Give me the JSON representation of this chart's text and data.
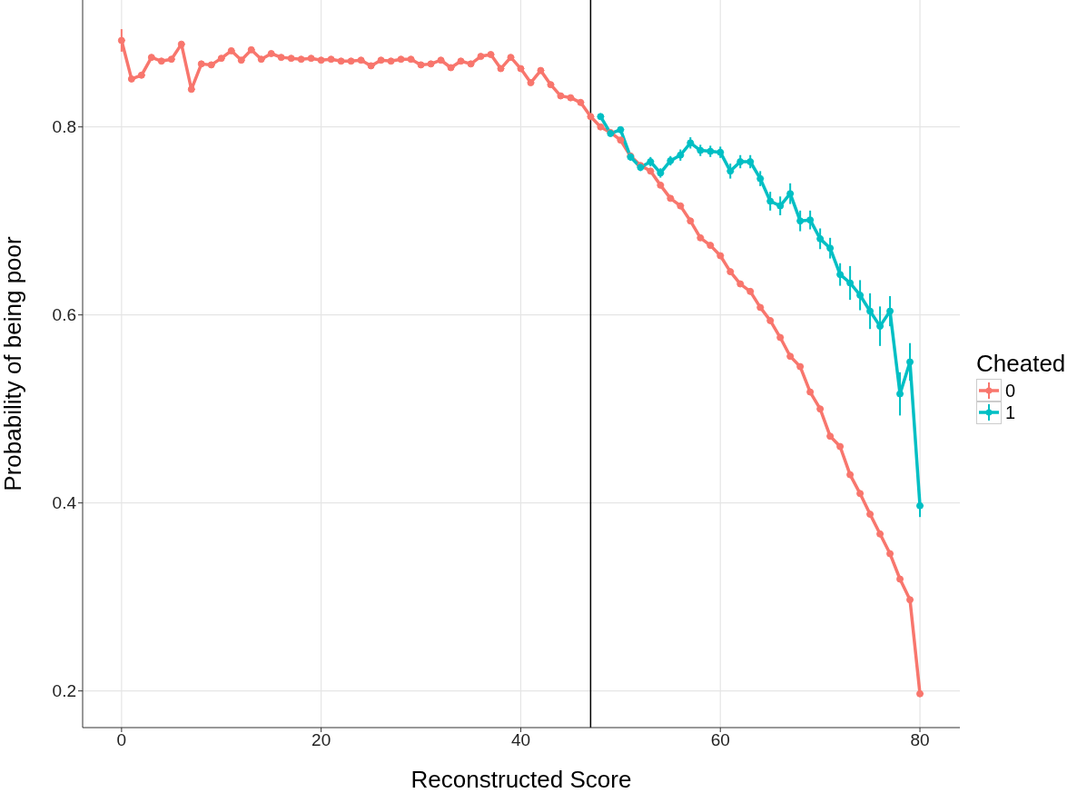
{
  "chart_data": {
    "type": "line",
    "xlabel": "Reconstructed Score",
    "ylabel": "Probability of being poor",
    "legend_title": "Cheated",
    "legend": "right",
    "grid": true,
    "marker": "circle",
    "line_style": "solid",
    "xlim": [
      -3.9,
      84
    ],
    "xticks": [
      0,
      20,
      40,
      60,
      80
    ],
    "ylim": [
      0.161,
      0.935
    ],
    "yticks": [
      0.2,
      0.4,
      0.6,
      0.8
    ],
    "ref_lines": [
      {
        "axis": "x",
        "value": 47,
        "color": "#000000"
      }
    ],
    "series": [
      {
        "name": "0",
        "color": "#f8766d",
        "x": [
          0,
          1,
          2,
          3,
          4,
          5,
          6,
          7,
          8,
          9,
          10,
          11,
          12,
          13,
          14,
          15,
          16,
          17,
          18,
          19,
          20,
          21,
          22,
          23,
          24,
          25,
          26,
          27,
          28,
          29,
          30,
          31,
          32,
          33,
          34,
          35,
          36,
          37,
          38,
          39,
          40,
          41,
          42,
          43,
          44,
          45,
          46,
          47,
          48,
          49,
          50,
          51,
          52,
          53,
          54,
          55,
          56,
          57,
          58,
          59,
          60,
          61,
          62,
          63,
          64,
          65,
          66,
          67,
          68,
          69,
          70,
          71,
          72,
          73,
          74,
          75,
          76,
          77,
          78,
          79,
          80
        ],
        "values": [
          0.892,
          0.851,
          0.855,
          0.874,
          0.87,
          0.872,
          0.888,
          0.84,
          0.867,
          0.866,
          0.873,
          0.881,
          0.871,
          0.882,
          0.872,
          0.878,
          0.874,
          0.873,
          0.872,
          0.873,
          0.871,
          0.872,
          0.87,
          0.87,
          0.871,
          0.865,
          0.871,
          0.87,
          0.872,
          0.872,
          0.866,
          0.867,
          0.871,
          0.863,
          0.87,
          0.867,
          0.875,
          0.877,
          0.862,
          0.874,
          0.862,
          0.847,
          0.86,
          0.845,
          0.833,
          0.831,
          0.826,
          0.811,
          0.8,
          0.794,
          0.786,
          0.769,
          0.759,
          0.753,
          0.738,
          0.724,
          0.716,
          0.7,
          0.682,
          0.674,
          0.663,
          0.646,
          0.633,
          0.625,
          0.608,
          0.594,
          0.576,
          0.556,
          0.545,
          0.518,
          0.5,
          0.471,
          0.46,
          0.43,
          0.41,
          0.388,
          0.367,
          0.346,
          0.319,
          0.297,
          0.197
        ],
        "errors": [
          0.012,
          null,
          null,
          null,
          null,
          null,
          null,
          null,
          null,
          null,
          null,
          null,
          null,
          null,
          null,
          null,
          null,
          null,
          null,
          null,
          null,
          null,
          null,
          null,
          null,
          null,
          null,
          null,
          null,
          null,
          null,
          null,
          null,
          null,
          null,
          null,
          null,
          null,
          null,
          null,
          null,
          null,
          null,
          null,
          null,
          null,
          null,
          null,
          null,
          null,
          null,
          null,
          null,
          null,
          null,
          null,
          null,
          null,
          null,
          null,
          null,
          null,
          null,
          null,
          null,
          null,
          null,
          null,
          null,
          null,
          null,
          null,
          null,
          null,
          null,
          null,
          null,
          null,
          null,
          null,
          null
        ]
      },
      {
        "name": "1",
        "color": "#00bfc4",
        "x": [
          48,
          49,
          50,
          51,
          52,
          53,
          54,
          55,
          56,
          57,
          58,
          59,
          60,
          61,
          62,
          63,
          64,
          65,
          66,
          67,
          68,
          69,
          70,
          71,
          72,
          73,
          74,
          75,
          76,
          77,
          78,
          79,
          80
        ],
        "values": [
          0.811,
          0.793,
          0.797,
          0.768,
          0.757,
          0.763,
          0.751,
          0.764,
          0.77,
          0.783,
          0.775,
          0.774,
          0.773,
          0.753,
          0.763,
          0.763,
          0.745,
          0.721,
          0.716,
          0.729,
          0.7,
          0.701,
          0.681,
          0.671,
          0.643,
          0.634,
          0.621,
          0.604,
          0.588,
          0.604,
          0.516,
          0.55,
          0.397
        ],
        "errors": [
          null,
          null,
          null,
          0.004,
          0.004,
          0.005,
          0.005,
          0.005,
          0.006,
          0.006,
          0.006,
          0.006,
          0.006,
          0.008,
          0.007,
          0.007,
          0.008,
          0.01,
          0.01,
          0.011,
          0.011,
          0.01,
          0.011,
          0.011,
          0.012,
          0.018,
          0.016,
          0.019,
          0.021,
          0.016,
          0.023,
          0.02,
          0.012
        ]
      }
    ]
  }
}
